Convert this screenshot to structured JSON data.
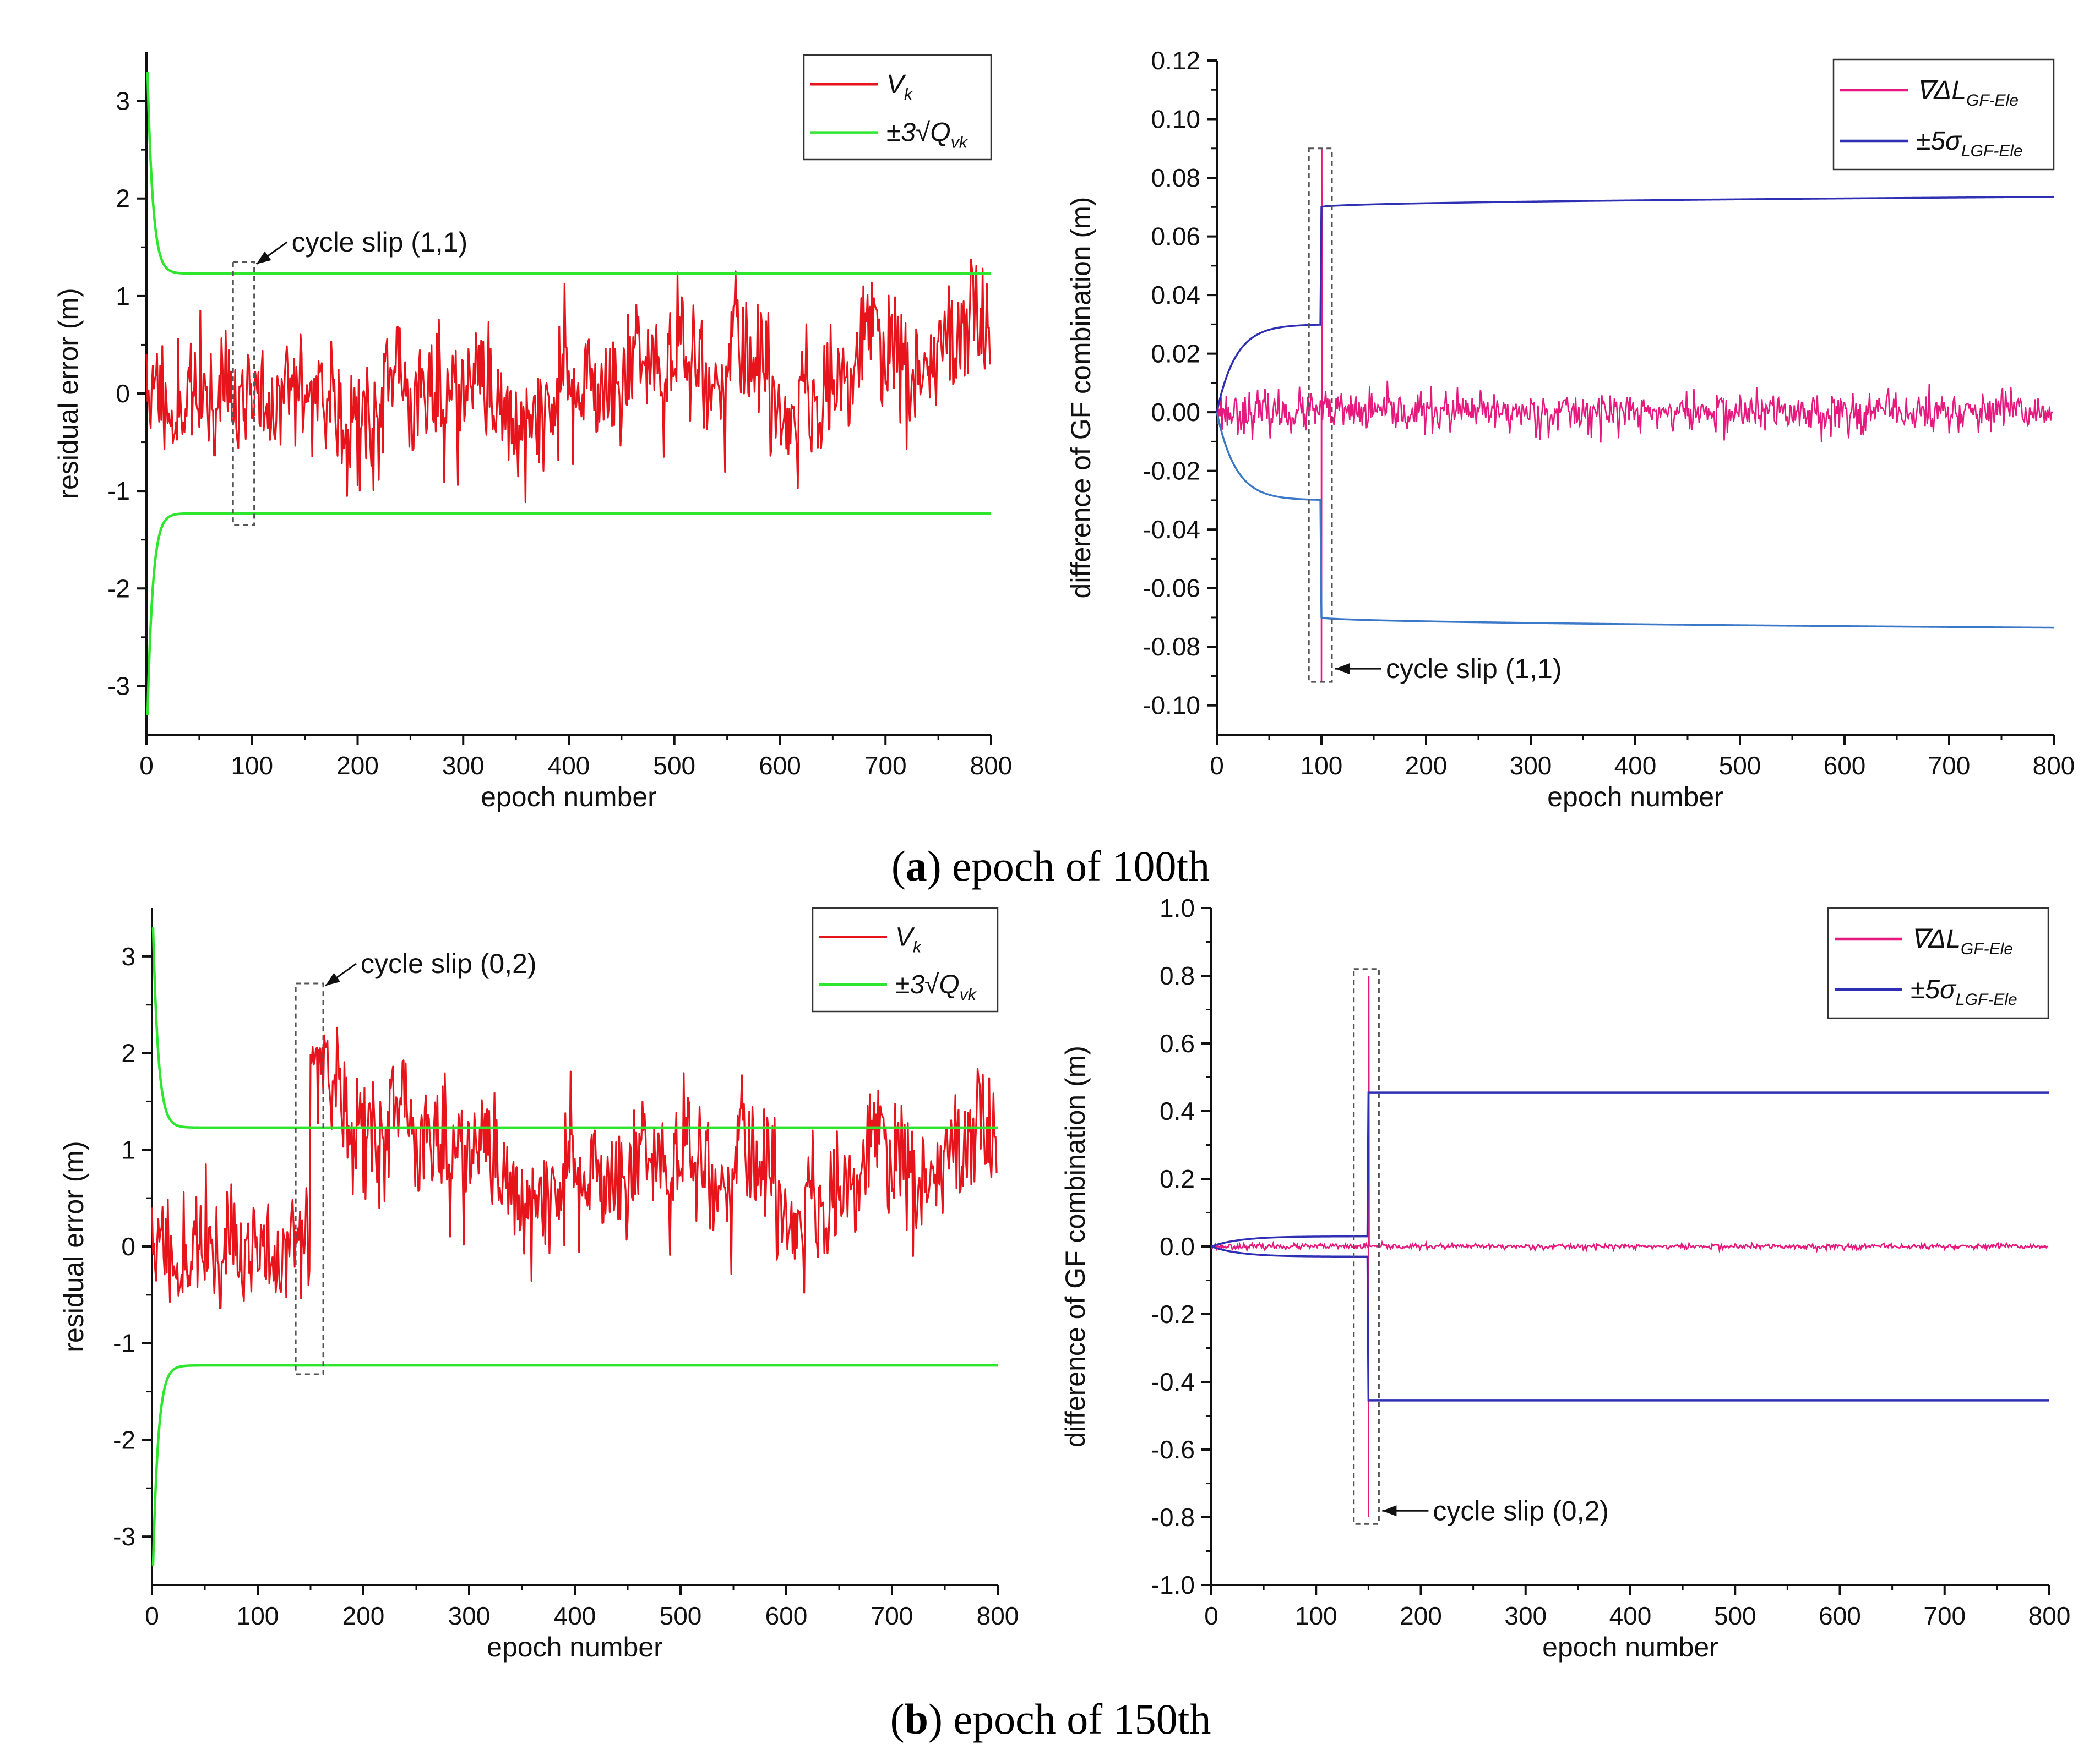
{
  "figure": {
    "captions": [
      {
        "letter": "a",
        "rest": ") epoch of 100th",
        "open": "("
      },
      {
        "letter": "b",
        "rest": ") epoch of 150th",
        "open": "("
      }
    ]
  },
  "colors": {
    "vk": "#e8141c",
    "bound3": "#2ee62e",
    "gf": "#e6197f",
    "bound5_upper": "#2f2fb4",
    "bound5_lower": "#3b78c8"
  },
  "chart_data": [
    {
      "id": "a-left",
      "type": "line",
      "xlabel": "epoch number",
      "ylabel": "residual error (m)",
      "xlim": [
        0,
        800
      ],
      "ylim": [
        -3.5,
        3.5
      ],
      "xticks": [
        "0",
        "100",
        "200",
        "300",
        "400",
        "500",
        "600",
        "700",
        "800"
      ],
      "xtick_values": [
        0,
        100,
        200,
        300,
        400,
        500,
        600,
        700,
        800
      ],
      "yticks": [
        "-3",
        "-2",
        "-1",
        "0",
        "1",
        "2",
        "3"
      ],
      "ytick_values": [
        -3,
        -2,
        -1,
        0,
        1,
        2,
        3
      ],
      "legend": {
        "position": "top-right",
        "entries": [
          {
            "label": "V",
            "sub": "k",
            "color": "#e8141c"
          },
          {
            "label": "±3√Q",
            "sub": "vk",
            "color": "#2ee62e"
          }
        ]
      },
      "series": [
        {
          "name": "V_k",
          "kind": "noise",
          "color": "#e8141c",
          "n": 800,
          "seed": 11,
          "amplitude": 0.35,
          "smooth": 0.7,
          "offset": 0.0,
          "jump_at": null,
          "jump_size": 0,
          "decay": 0
        },
        {
          "name": "+3√Q_vk",
          "kind": "bound",
          "color": "#2ee62e",
          "final": 1.23,
          "start": 3.3,
          "tau": 5,
          "sign": 1
        },
        {
          "name": "-3√Q_vk",
          "kind": "bound",
          "color": "#2ee62e",
          "final": -1.23,
          "start": -3.3,
          "tau": 5,
          "sign": -1
        }
      ],
      "annotation": {
        "text": "cycle slip (1,1)",
        "epoch": 100,
        "box_x": [
          82,
          102
        ],
        "box_y": [
          -1.35,
          1.35
        ]
      }
    },
    {
      "id": "a-right",
      "type": "line",
      "xlabel": "epoch number",
      "ylabel": "difference of GF combination (m)",
      "xlim": [
        0,
        800
      ],
      "ylim": [
        -0.11,
        0.12
      ],
      "xticks": [
        "0",
        "100",
        "200",
        "300",
        "400",
        "500",
        "600",
        "700",
        "800"
      ],
      "xtick_values": [
        0,
        100,
        200,
        300,
        400,
        500,
        600,
        700,
        800
      ],
      "yticks": [
        "-0.10",
        "-0.08",
        "-0.06",
        "-0.04",
        "-0.02",
        "0.00",
        "0.02",
        "0.04",
        "0.06",
        "0.08",
        "0.10",
        "0.12"
      ],
      "ytick_values": [
        -0.1,
        -0.08,
        -0.06,
        -0.04,
        -0.02,
        0.0,
        0.02,
        0.04,
        0.06,
        0.08,
        0.1,
        0.12
      ],
      "legend": {
        "position": "top-right",
        "entries": [
          {
            "label": "∇ΔL",
            "sub": "GF-Ele",
            "color": "#e6197f"
          },
          {
            "label": "±5σ",
            "sub": "LGF-Ele",
            "color": "#2f2fb4"
          }
        ]
      },
      "series": [
        {
          "name": "GF",
          "kind": "gfnoise",
          "color": "#e6197f",
          "n": 800,
          "seed": 23,
          "amplitude": 0.0035,
          "spike_at": 100,
          "spike_low": -0.092,
          "spike_high": 0.09
        },
        {
          "name": "+5σ",
          "kind": "gfbound",
          "color": "#2f2fb4",
          "early_start": 0.0,
          "early_end": 0.03,
          "late_start": 0.07,
          "late_end": 0.0735,
          "switch": 100
        },
        {
          "name": "-5σ",
          "kind": "gfbound",
          "color": "#3b78c8",
          "early_start": 0.0,
          "early_end": -0.03,
          "late_start": -0.07,
          "late_end": -0.0735,
          "switch": 100
        }
      ],
      "annotation": {
        "text": "cycle slip (1,1)",
        "epoch": 100,
        "box_x": [
          88,
          110
        ],
        "box_y": [
          -0.092,
          0.09
        ]
      }
    },
    {
      "id": "b-left",
      "type": "line",
      "xlabel": "epoch number",
      "ylabel": "residual error (m)",
      "xlim": [
        0,
        800
      ],
      "ylim": [
        -3.5,
        3.5
      ],
      "xticks": [
        "0",
        "100",
        "200",
        "300",
        "400",
        "500",
        "600",
        "700",
        "800"
      ],
      "xtick_values": [
        0,
        100,
        200,
        300,
        400,
        500,
        600,
        700,
        800
      ],
      "yticks": [
        "-3",
        "-2",
        "-1",
        "0",
        "1",
        "2",
        "3"
      ],
      "ytick_values": [
        -3,
        -2,
        -1,
        0,
        1,
        2,
        3
      ],
      "legend": {
        "position": "top-right",
        "entries": [
          {
            "label": "V",
            "sub": "k",
            "color": "#e8141c"
          },
          {
            "label": "±3√Q",
            "sub": "vk",
            "color": "#2ee62e"
          }
        ]
      },
      "series": [
        {
          "name": "V_k",
          "kind": "noise",
          "color": "#e8141c",
          "n": 800,
          "seed": 11,
          "amplitude": 0.35,
          "smooth": 0.7,
          "offset": 0.0,
          "jump_at": 150,
          "jump_size": 2.0,
          "decay": 0.0035,
          "floor": 0.45
        },
        {
          "name": "+3√Q_vk",
          "kind": "bound",
          "color": "#2ee62e",
          "final": 1.23,
          "start": 3.3,
          "tau": 5,
          "sign": 1
        },
        {
          "name": "-3√Q_vk",
          "kind": "bound",
          "color": "#2ee62e",
          "final": -1.23,
          "start": -3.3,
          "tau": 5,
          "sign": -1
        }
      ],
      "annotation": {
        "text": "cycle slip (0,2)",
        "epoch": 150,
        "box_x": [
          136,
          162
        ],
        "box_y": [
          -1.32,
          2.72
        ]
      }
    },
    {
      "id": "b-right",
      "type": "line",
      "xlabel": "epoch number",
      "ylabel": "difference of GF combination (m)",
      "xlim": [
        0,
        800
      ],
      "ylim": [
        -1.0,
        1.0
      ],
      "xticks": [
        "0",
        "100",
        "200",
        "300",
        "400",
        "500",
        "600",
        "700",
        "800"
      ],
      "xtick_values": [
        0,
        100,
        200,
        300,
        400,
        500,
        600,
        700,
        800
      ],
      "yticks": [
        "-1.0",
        "-0.8",
        "-0.6",
        "-0.4",
        "-0.2",
        "0.0",
        "0.2",
        "0.4",
        "0.6",
        "0.8",
        "1.0"
      ],
      "ytick_values": [
        -1.0,
        -0.8,
        -0.6,
        -0.4,
        -0.2,
        0.0,
        0.2,
        0.4,
        0.6,
        0.8,
        1.0
      ],
      "legend": {
        "position": "top-right",
        "entries": [
          {
            "label": "∇ΔL",
            "sub": "GF-Ele",
            "color": "#e6197f"
          },
          {
            "label": "±5σ",
            "sub": "LGF-Ele",
            "color": "#2f2fb4"
          }
        ]
      },
      "series": [
        {
          "name": "GF",
          "kind": "gfnoise",
          "color": "#e6197f",
          "n": 800,
          "seed": 23,
          "amplitude": 0.004,
          "spike_at": 150,
          "spike_low": -0.8,
          "spike_high": 0.8
        },
        {
          "name": "+5σ",
          "kind": "gfbound",
          "color": "#2f2fb4",
          "early_start": 0.0,
          "early_end": 0.03,
          "late_start": 0.455,
          "late_end": 0.455,
          "switch": 150
        },
        {
          "name": "-5σ",
          "kind": "gfbound",
          "color": "#2f2fb4",
          "early_start": 0.0,
          "early_end": -0.03,
          "late_start": -0.455,
          "late_end": -0.455,
          "switch": 150
        }
      ],
      "annotation": {
        "text": "cycle slip (0,2)",
        "epoch": 150,
        "box_x": [
          136,
          160
        ],
        "box_y": [
          -0.82,
          0.82
        ]
      }
    }
  ]
}
